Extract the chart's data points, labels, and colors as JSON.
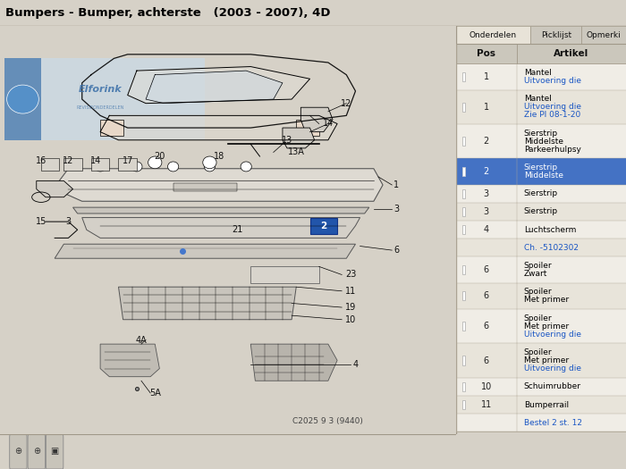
{
  "title": "Bumpers - Bumper, achterste   (2003 - 2007), 4D",
  "bg_color": "#d6d1c7",
  "panel_bg": "#e8e3d8",
  "diagram_bg": "#e8e3d8",
  "sidebar_bg": "#f2efe8",
  "header_bg": "#c9c4b8",
  "title_color": "#000000",
  "title_fontsize": 9.5,
  "tabs": [
    "Onderdelen",
    "Picklijst",
    "Opmerki"
  ],
  "table_header": [
    "Pos",
    "Artikel"
  ],
  "table_rows": [
    {
      "pos": "1",
      "lines": [
        "Mantel",
        "Uitvoering die"
      ],
      "line_colors": [
        "#000000",
        "#1a56c4"
      ],
      "highlight": false
    },
    {
      "pos": "1",
      "lines": [
        "Mantel",
        "Uitvoering die",
        "Zie PI 08-1-20"
      ],
      "line_colors": [
        "#000000",
        "#1a56c4",
        "#1a56c4"
      ],
      "highlight": false
    },
    {
      "pos": "2",
      "lines": [
        "Sierstrip",
        "Middelste",
        "Parkeerhulpsy"
      ],
      "line_colors": [
        "#000000",
        "#000000",
        "#000000"
      ],
      "highlight": false
    },
    {
      "pos": "2",
      "lines": [
        "Sierstrip",
        "Middelste"
      ],
      "line_colors": [
        "#ffffff",
        "#ffffff"
      ],
      "highlight": true
    },
    {
      "pos": "3",
      "lines": [
        "Sierstrip"
      ],
      "line_colors": [
        "#000000"
      ],
      "highlight": false
    },
    {
      "pos": "3",
      "lines": [
        "Sierstrip"
      ],
      "line_colors": [
        "#000000"
      ],
      "highlight": false
    },
    {
      "pos": "4",
      "lines": [
        "Luchtscherm"
      ],
      "line_colors": [
        "#000000"
      ],
      "highlight": false
    },
    {
      "pos": "",
      "lines": [
        "Ch. -5102302"
      ],
      "line_colors": [
        "#1a56c4"
      ],
      "highlight": false
    },
    {
      "pos": "6",
      "lines": [
        "Spoiler",
        "Zwart"
      ],
      "line_colors": [
        "#000000",
        "#000000"
      ],
      "highlight": false
    },
    {
      "pos": "6",
      "lines": [
        "Spoiler",
        "Met primer"
      ],
      "line_colors": [
        "#000000",
        "#000000"
      ],
      "highlight": false
    },
    {
      "pos": "6",
      "lines": [
        "Spoiler",
        "Met primer",
        "Uitvoering die"
      ],
      "line_colors": [
        "#000000",
        "#000000",
        "#1a56c4"
      ],
      "highlight": false
    },
    {
      "pos": "6",
      "lines": [
        "Spoiler",
        "Met primer",
        "Uitvoering die"
      ],
      "line_colors": [
        "#000000",
        "#000000",
        "#1a56c4"
      ],
      "highlight": false
    },
    {
      "pos": "10",
      "lines": [
        "Schuimrubber"
      ],
      "line_colors": [
        "#000000"
      ],
      "highlight": false
    },
    {
      "pos": "11",
      "lines": [
        "Bumperrail"
      ],
      "line_colors": [
        "#000000"
      ],
      "highlight": false
    },
    {
      "pos": "",
      "lines": [
        "Bestel 2 st. 12"
      ],
      "line_colors": [
        "#1a56c4"
      ],
      "highlight": false
    }
  ],
  "highlight_color": "#4472c4",
  "table_border_color": "#b0a898",
  "tab_active_color": "#e8e3d8",
  "tab_inactive_color": "#ccc8be",
  "bottom_text": "C2025 9 3 (9440)"
}
